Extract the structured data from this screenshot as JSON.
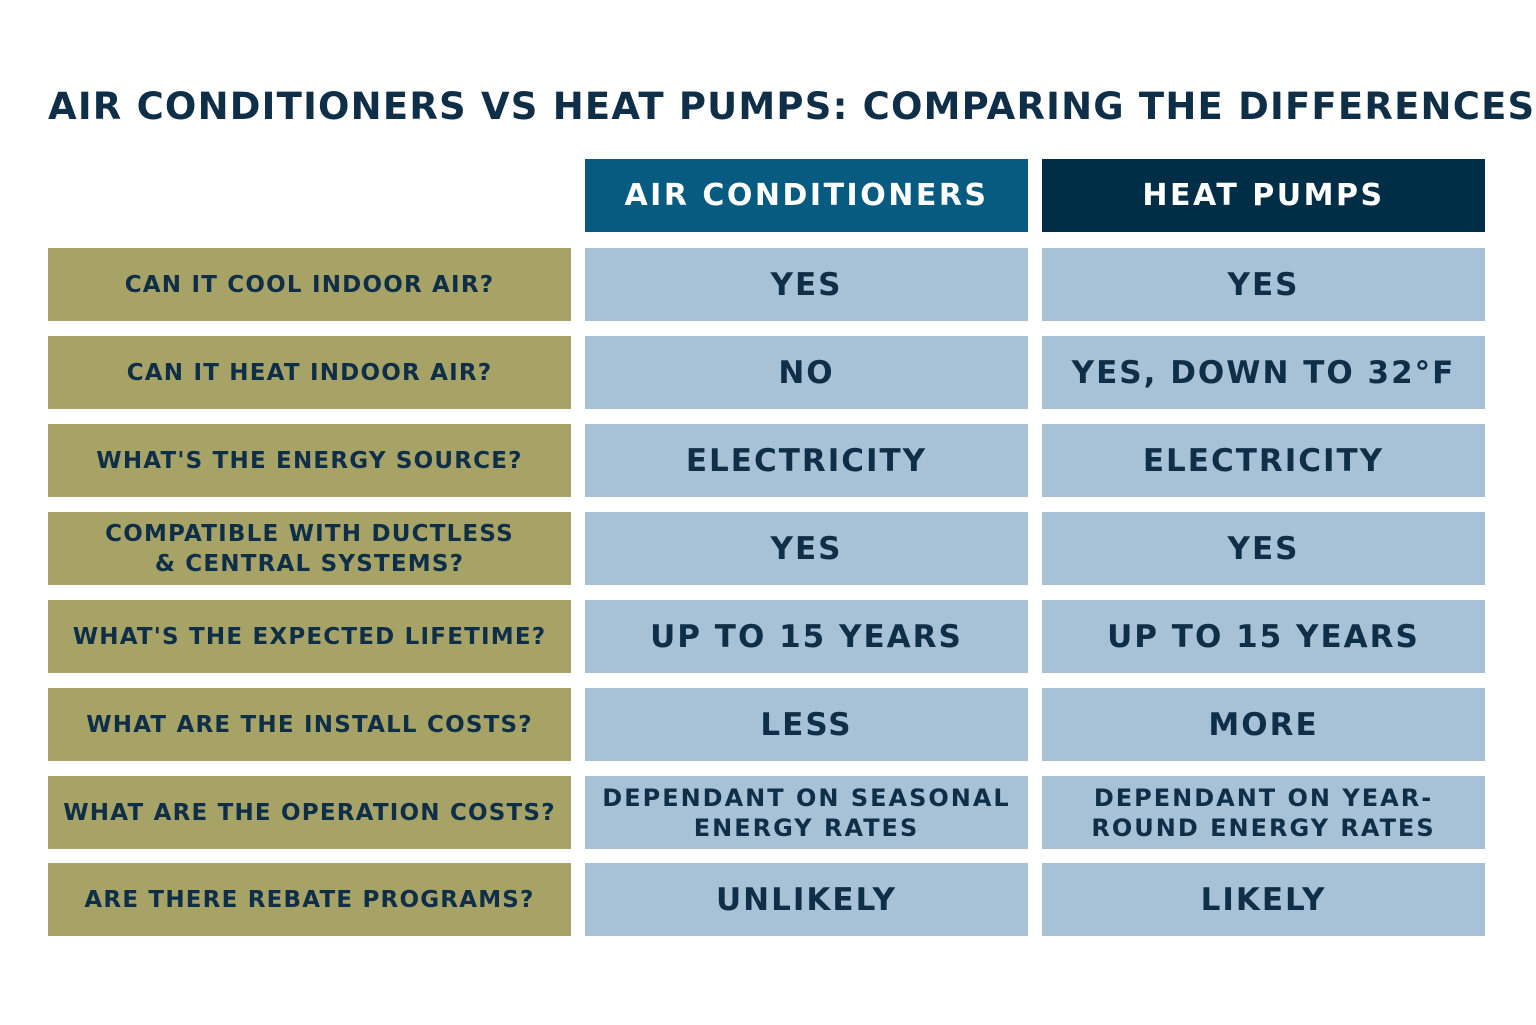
{
  "title": "AIR CONDITIONERS VS HEAT PUMPS: COMPARING THE DIFFERENCES",
  "columns": {
    "ac": "AIR CONDITIONERS",
    "hp": "HEAT PUMPS"
  },
  "rows": [
    {
      "question": [
        "CAN IT COOL INDOOR AIR?"
      ],
      "ac": [
        "YES"
      ],
      "hp": [
        "YES"
      ]
    },
    {
      "question": [
        "CAN IT HEAT INDOOR AIR?"
      ],
      "ac": [
        "NO"
      ],
      "hp": [
        "YES, DOWN TO 32°F"
      ]
    },
    {
      "question": [
        "WHAT'S THE ENERGY SOURCE?"
      ],
      "ac": [
        "ELECTRICITY"
      ],
      "hp": [
        "ELECTRICITY"
      ]
    },
    {
      "question": [
        "COMPATIBLE WITH DUCTLESS",
        "& CENTRAL SYSTEMS?"
      ],
      "ac": [
        "YES"
      ],
      "hp": [
        "YES"
      ]
    },
    {
      "question": [
        "WHAT'S THE EXPECTED LIFETIME?"
      ],
      "ac": [
        "UP TO 15 YEARS"
      ],
      "hp": [
        "UP TO 15 YEARS"
      ]
    },
    {
      "question": [
        "WHAT ARE THE INSTALL COSTS?"
      ],
      "ac": [
        "LESS"
      ],
      "hp": [
        "MORE"
      ]
    },
    {
      "question": [
        "WHAT ARE THE OPERATION COSTS?"
      ],
      "ac": [
        "DEPENDANT ON SEASONAL",
        "ENERGY RATES"
      ],
      "hp": [
        "DEPENDANT ON YEAR-",
        "ROUND ENERGY RATES"
      ]
    },
    {
      "question": [
        "ARE THERE REBATE PROGRAMS?"
      ],
      "ac": [
        "UNLIKELY"
      ],
      "hp": [
        "LIKELY"
      ]
    }
  ],
  "colors": {
    "title_text": "#0f2e48",
    "ac_header_bg": "#075b80",
    "hp_header_bg": "#002e47",
    "question_bg": "#a7a366",
    "answer_bg": "#a7c1d7",
    "cell_text": "#0f2e48"
  }
}
